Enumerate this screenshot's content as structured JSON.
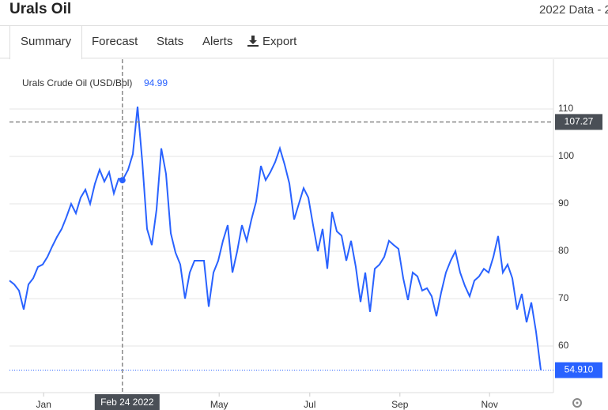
{
  "header": {
    "title": "Urals Oil",
    "range": "2022 Data - 2"
  },
  "tabs": [
    "Summary",
    "Forecast",
    "Stats",
    "Alerts",
    "Export"
  ],
  "chart_data": {
    "type": "line",
    "series_label": "Urals Crude Oil (USD/Bbl)",
    "hover_value": 94.99,
    "series": [
      {
        "name": "Urals Crude Oil",
        "color": "#2962ff",
        "values": [
          73.8,
          73,
          71.7,
          67.7,
          73,
          74.3,
          76.7,
          77.2,
          78.8,
          81,
          83,
          84.7,
          87.2,
          90,
          88,
          91.3,
          93,
          90,
          94.2,
          97.2,
          94.7,
          96.7,
          92.2,
          95.3,
          95.3,
          97.2,
          100.5,
          110.5,
          98.8,
          84.7,
          81.3,
          88.8,
          101.7,
          96.3,
          83.8,
          79.7,
          77.2,
          70,
          75.5,
          78,
          78,
          78,
          68.3,
          75.5,
          78,
          82.2,
          85.5,
          75.5,
          80,
          85.5,
          82.2,
          86.7,
          90.5,
          98,
          95,
          96.7,
          98.8,
          101.7,
          98.3,
          94.3,
          86.7,
          90,
          93.3,
          91.3,
          85.5,
          80,
          84.7,
          76.3,
          88.3,
          84.2,
          83.3,
          78,
          82.2,
          76.7,
          69.3,
          75.5,
          67.2,
          76.3,
          77.2,
          78.8,
          82.2,
          81.3,
          80.5,
          74.3,
          69.7,
          75.5,
          74.7,
          71.7,
          72.2,
          70.5,
          66.3,
          71.3,
          75.5,
          78,
          80,
          75.5,
          72.7,
          70.5,
          73.8,
          74.7,
          76.3,
          75.5,
          78.8,
          83.2,
          75.5,
          77.2,
          74.3,
          67.7,
          71,
          65,
          69.2,
          63,
          54.91
        ]
      }
    ],
    "xlim": [
      0,
      112
    ],
    "xticks": [
      {
        "value": 7.2,
        "label": "Jan"
      },
      {
        "value": 44.2,
        "label": "May"
      },
      {
        "value": 63.3,
        "label": "Jul"
      },
      {
        "value": 82.3,
        "label": "Sep"
      },
      {
        "value": 101.2,
        "label": "Nov"
      }
    ],
    "ylim": [
      50.17,
      120.5
    ],
    "yticks": [
      60,
      70,
      80,
      90,
      100,
      110
    ],
    "grid": true,
    "crosshair": {
      "x": 23.8,
      "x_label": "Feb 24 2022",
      "y": 107.27
    },
    "last": {
      "value": 54.91,
      "label": "54.910"
    }
  }
}
